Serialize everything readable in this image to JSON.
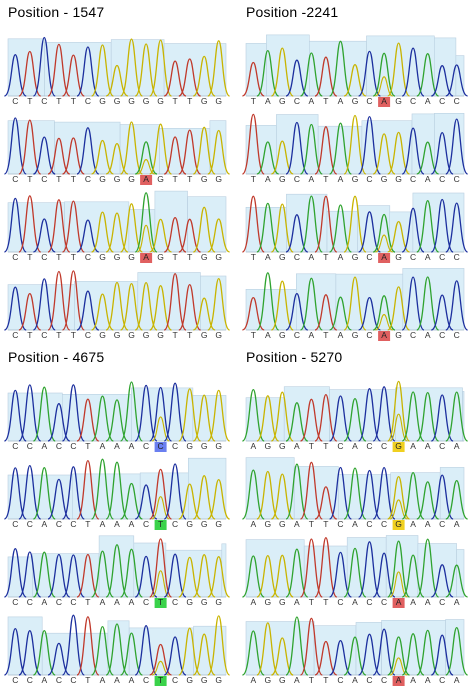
{
  "panels": [
    {
      "title": "Position - 1547",
      "traces": [
        {
          "seq": [
            "C",
            "T",
            "C",
            "T",
            "T",
            "C",
            "G",
            "G",
            "G",
            "G",
            "G",
            "T",
            "T",
            "G",
            "G"
          ],
          "highlight": null
        },
        {
          "seq": [
            "C",
            "T",
            "C",
            "T",
            "T",
            "C",
            "G",
            "G",
            "G",
            "A",
            "G",
            "T",
            "T",
            "G",
            "G"
          ],
          "highlight": {
            "index": 9,
            "color": "#e06060"
          }
        },
        {
          "seq": [
            "C",
            "T",
            "C",
            "T",
            "T",
            "C",
            "G",
            "G",
            "G",
            "A",
            "G",
            "T",
            "T",
            "G",
            "G"
          ],
          "highlight": {
            "index": 9,
            "color": "#e06060"
          }
        },
        {
          "seq": [
            "C",
            "T",
            "C",
            "T",
            "T",
            "C",
            "G",
            "G",
            "G",
            "G",
            "G",
            "T",
            "T",
            "G",
            "G"
          ],
          "highlight": null
        }
      ]
    },
    {
      "title": "Position -2241",
      "traces": [
        {
          "seq": [
            "T",
            "A",
            "G",
            "C",
            "A",
            "T",
            "A",
            "G",
            "C",
            "A",
            "G",
            "C",
            "A",
            "C",
            "C"
          ],
          "highlight": {
            "index": 9,
            "color": "#e06060"
          }
        },
        {
          "seq": [
            "T",
            "A",
            "G",
            "C",
            "A",
            "T",
            "A",
            "G",
            "C",
            "G",
            "G",
            "C",
            "A",
            "C",
            "C"
          ],
          "highlight": null
        },
        {
          "seq": [
            "T",
            "A",
            "G",
            "C",
            "A",
            "T",
            "A",
            "G",
            "C",
            "A",
            "G",
            "C",
            "A",
            "C",
            "C"
          ],
          "highlight": {
            "index": 9,
            "color": "#e06060"
          }
        },
        {
          "seq": [
            "T",
            "A",
            "G",
            "C",
            "A",
            "T",
            "A",
            "G",
            "C",
            "A",
            "G",
            "C",
            "A",
            "C",
            "C"
          ],
          "highlight": {
            "index": 9,
            "color": "#e06060"
          }
        }
      ]
    },
    {
      "title": "Position - 4675",
      "traces": [
        {
          "seq": [
            "C",
            "C",
            "A",
            "C",
            "C",
            "T",
            "A",
            "A",
            "A",
            "C",
            "C",
            "C",
            "G",
            "G",
            "G"
          ],
          "highlight": {
            "index": 10,
            "color": "#6a7ff0"
          }
        },
        {
          "seq": [
            "C",
            "C",
            "A",
            "C",
            "C",
            "T",
            "A",
            "A",
            "A",
            "C",
            "T",
            "C",
            "G",
            "G",
            "G"
          ],
          "highlight": {
            "index": 10,
            "color": "#3ad24a"
          }
        },
        {
          "seq": [
            "C",
            "C",
            "A",
            "C",
            "C",
            "T",
            "A",
            "A",
            "A",
            "C",
            "T",
            "C",
            "G",
            "G",
            "G"
          ],
          "highlight": {
            "index": 10,
            "color": "#3ad24a"
          }
        },
        {
          "seq": [
            "C",
            "C",
            "A",
            "C",
            "C",
            "T",
            "A",
            "A",
            "A",
            "C",
            "T",
            "C",
            "G",
            "G",
            "G"
          ],
          "highlight": {
            "index": 10,
            "color": "#3ad24a"
          }
        }
      ]
    },
    {
      "title": "Position - 5270",
      "traces": [
        {
          "seq": [
            "A",
            "G",
            "G",
            "A",
            "T",
            "T",
            "C",
            "A",
            "C",
            "C",
            "G",
            "A",
            "A",
            "C",
            "A"
          ],
          "highlight": {
            "index": 10,
            "color": "#f0d020"
          }
        },
        {
          "seq": [
            "A",
            "G",
            "G",
            "A",
            "T",
            "T",
            "C",
            "A",
            "C",
            "C",
            "G",
            "A",
            "A",
            "C",
            "A"
          ],
          "highlight": {
            "index": 10,
            "color": "#f0d020"
          }
        },
        {
          "seq": [
            "A",
            "G",
            "G",
            "A",
            "T",
            "T",
            "C",
            "A",
            "C",
            "C",
            "A",
            "A",
            "A",
            "C",
            "A"
          ],
          "highlight": {
            "index": 10,
            "color": "#e06060"
          }
        },
        {
          "seq": [
            "A",
            "G",
            "G",
            "A",
            "T",
            "T",
            "C",
            "A",
            "C",
            "C",
            "A",
            "A",
            "A",
            "C",
            "A"
          ],
          "highlight": {
            "index": 10,
            "color": "#e06060"
          }
        }
      ]
    }
  ],
  "colors": {
    "A": "#2fa32f",
    "C": "#1c2f9e",
    "G": "#c8b400",
    "T": "#c0392b",
    "background": "#daeef8",
    "frame": "#b9cfe0"
  }
}
